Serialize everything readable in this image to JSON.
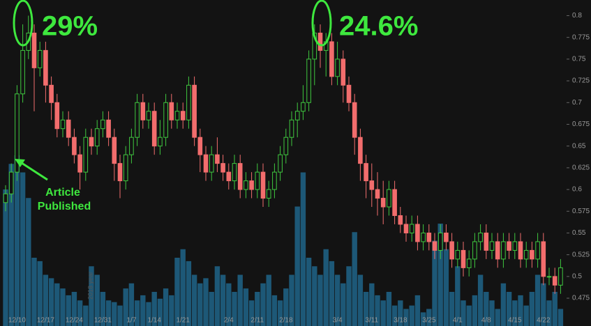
{
  "chart_data": {
    "type": "candlestick",
    "categories": [
      null,
      null,
      "12/10",
      null,
      null,
      null,
      null,
      "12/17",
      null,
      null,
      null,
      null,
      "12/24",
      null,
      null,
      null,
      null,
      "12/31",
      null,
      null,
      null,
      null,
      "1/7",
      null,
      null,
      null,
      "1/14",
      null,
      null,
      null,
      null,
      "1/21",
      null,
      null,
      null,
      null,
      null,
      null,
      null,
      "2/4",
      null,
      null,
      null,
      null,
      "2/11",
      null,
      null,
      null,
      null,
      "2/18",
      null,
      null,
      null,
      null,
      null,
      null,
      null,
      null,
      "3/4",
      null,
      null,
      null,
      null,
      null,
      "3/11",
      null,
      null,
      null,
      null,
      "3/18",
      null,
      null,
      null,
      null,
      "3/25",
      null,
      null,
      null,
      null,
      "4/1",
      null,
      null,
      null,
      null,
      "4/8",
      null,
      null,
      null,
      null,
      "4/15",
      null,
      null,
      null,
      null,
      "4/22",
      null,
      null,
      null
    ],
    "open": [
      0.585,
      0.595,
      0.62,
      0.71,
      0.76,
      0.78,
      0.74,
      0.76,
      0.72,
      0.7,
      0.67,
      0.68,
      0.66,
      0.64,
      0.62,
      0.66,
      0.65,
      0.67,
      0.68,
      0.66,
      0.63,
      0.61,
      0.64,
      0.66,
      0.7,
      0.68,
      0.69,
      0.65,
      0.66,
      0.7,
      0.68,
      0.69,
      0.68,
      0.72,
      0.66,
      0.64,
      0.62,
      0.64,
      0.63,
      0.62,
      0.61,
      0.63,
      0.6,
      0.61,
      0.6,
      0.62,
      0.59,
      0.6,
      0.62,
      0.64,
      0.66,
      0.68,
      0.69,
      0.7,
      0.75,
      0.78,
      0.76,
      0.77,
      0.73,
      0.75,
      0.72,
      0.7,
      0.66,
      0.63,
      0.61,
      0.6,
      0.59,
      0.58,
      0.6,
      0.57,
      0.56,
      0.55,
      0.56,
      0.54,
      0.55,
      0.54,
      0.53,
      0.55,
      0.54,
      0.52,
      0.53,
      0.51,
      0.52,
      0.54,
      0.55,
      0.53,
      0.54,
      0.52,
      0.54,
      0.53,
      0.54,
      0.52,
      0.53,
      0.52,
      0.54,
      0.5,
      0.5,
      0.49
    ],
    "high": [
      0.605,
      0.63,
      0.72,
      0.79,
      0.8,
      0.79,
      0.77,
      0.77,
      0.73,
      0.71,
      0.69,
      0.69,
      0.67,
      0.65,
      0.67,
      0.67,
      0.68,
      0.69,
      0.69,
      0.67,
      0.64,
      0.65,
      0.67,
      0.71,
      0.71,
      0.7,
      0.7,
      0.68,
      0.71,
      0.71,
      0.7,
      0.7,
      0.73,
      0.73,
      0.67,
      0.65,
      0.65,
      0.66,
      0.64,
      0.63,
      0.64,
      0.64,
      0.62,
      0.62,
      0.63,
      0.63,
      0.61,
      0.63,
      0.65,
      0.67,
      0.69,
      0.7,
      0.72,
      0.76,
      0.79,
      0.79,
      0.78,
      0.78,
      0.77,
      0.76,
      0.73,
      0.71,
      0.67,
      0.64,
      0.63,
      0.62,
      0.61,
      0.61,
      0.61,
      0.58,
      0.57,
      0.57,
      0.57,
      0.56,
      0.56,
      0.55,
      0.56,
      0.56,
      0.55,
      0.54,
      0.54,
      0.53,
      0.55,
      0.56,
      0.56,
      0.55,
      0.55,
      0.55,
      0.55,
      0.55,
      0.55,
      0.54,
      0.54,
      0.55,
      0.55,
      0.51,
      0.51,
      0.52
    ],
    "low": [
      0.575,
      0.585,
      0.61,
      0.7,
      0.75,
      0.69,
      0.73,
      0.7,
      0.68,
      0.66,
      0.66,
      0.65,
      0.63,
      0.6,
      0.61,
      0.64,
      0.64,
      0.66,
      0.65,
      0.61,
      0.59,
      0.6,
      0.63,
      0.65,
      0.67,
      0.67,
      0.64,
      0.64,
      0.65,
      0.67,
      0.67,
      0.67,
      0.67,
      0.65,
      0.62,
      0.61,
      0.61,
      0.62,
      0.61,
      0.6,
      0.6,
      0.59,
      0.59,
      0.59,
      0.59,
      0.58,
      0.58,
      0.59,
      0.61,
      0.63,
      0.65,
      0.66,
      0.68,
      0.69,
      0.72,
      0.74,
      0.73,
      0.72,
      0.72,
      0.7,
      0.69,
      0.64,
      0.61,
      0.59,
      0.58,
      0.57,
      0.56,
      0.57,
      0.56,
      0.55,
      0.54,
      0.54,
      0.53,
      0.53,
      0.53,
      0.52,
      0.52,
      0.53,
      0.51,
      0.51,
      0.5,
      0.5,
      0.51,
      0.53,
      0.52,
      0.52,
      0.51,
      0.51,
      0.52,
      0.52,
      0.51,
      0.51,
      0.51,
      0.51,
      0.49,
      0.49,
      0.48,
      0.48
    ],
    "close": [
      0.595,
      0.62,
      0.71,
      0.76,
      0.78,
      0.74,
      0.76,
      0.72,
      0.7,
      0.67,
      0.68,
      0.66,
      0.64,
      0.62,
      0.66,
      0.65,
      0.67,
      0.68,
      0.66,
      0.63,
      0.61,
      0.64,
      0.66,
      0.7,
      0.68,
      0.69,
      0.65,
      0.66,
      0.7,
      0.68,
      0.69,
      0.68,
      0.72,
      0.66,
      0.64,
      0.62,
      0.64,
      0.63,
      0.62,
      0.61,
      0.63,
      0.6,
      0.61,
      0.6,
      0.62,
      0.59,
      0.6,
      0.62,
      0.64,
      0.66,
      0.68,
      0.69,
      0.7,
      0.75,
      0.78,
      0.76,
      0.77,
      0.73,
      0.75,
      0.72,
      0.7,
      0.66,
      0.63,
      0.61,
      0.6,
      0.59,
      0.58,
      0.6,
      0.57,
      0.56,
      0.55,
      0.56,
      0.54,
      0.55,
      0.54,
      0.53,
      0.55,
      0.54,
      0.52,
      0.53,
      0.51,
      0.52,
      0.54,
      0.55,
      0.53,
      0.54,
      0.52,
      0.54,
      0.53,
      0.54,
      0.52,
      0.53,
      0.52,
      0.54,
      0.5,
      0.5,
      0.49,
      0.51
    ],
    "volume": [
      80,
      95,
      100,
      90,
      75,
      40,
      38,
      30,
      28,
      25,
      22,
      18,
      20,
      15,
      12,
      35,
      30,
      20,
      15,
      14,
      12,
      22,
      25,
      15,
      18,
      14,
      20,
      16,
      22,
      18,
      40,
      45,
      38,
      30,
      25,
      28,
      20,
      35,
      30,
      25,
      20,
      30,
      22,
      15,
      20,
      25,
      30,
      18,
      15,
      22,
      30,
      70,
      90,
      40,
      35,
      30,
      45,
      38,
      30,
      25,
      35,
      55,
      30,
      20,
      25,
      18,
      15,
      20,
      12,
      15,
      10,
      12,
      18,
      8,
      10,
      50,
      60,
      45,
      20,
      35,
      15,
      12,
      18,
      30,
      20,
      15,
      10,
      25,
      20,
      15,
      18,
      12,
      20,
      30,
      25,
      15,
      20,
      10
    ],
    "up_color": "#3fc83f",
    "down_color": "#f26d6d",
    "volume_color": "#1d5877",
    "ylim": [
      0.443,
      0.818
    ],
    "yticks": [
      0.475,
      0.5,
      0.525,
      0.55,
      0.575,
      0.6,
      0.625,
      0.65,
      0.675,
      0.7,
      0.725,
      0.75,
      0.775,
      0.8
    ],
    "annotations": [
      "29%",
      "24.6%",
      "Article",
      "Published",
      "2018 year"
    ]
  }
}
